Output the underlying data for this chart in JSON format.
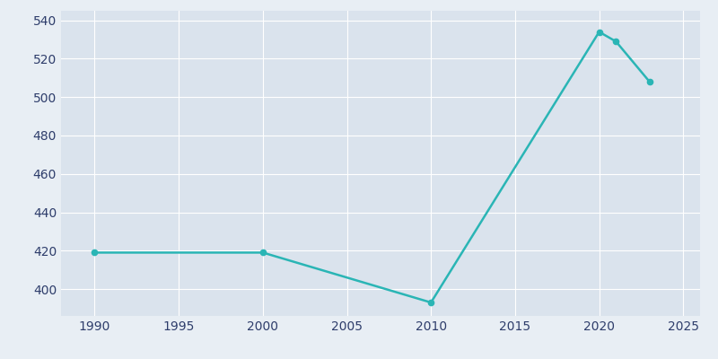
{
  "years": [
    1990,
    2000,
    2010,
    2020,
    2021,
    2023
  ],
  "population": [
    419,
    419,
    393,
    534,
    529,
    508
  ],
  "line_color": "#2AB5B5",
  "marker_color": "#2AB5B5",
  "background_color": "#E8EEF4",
  "plot_background_color": "#DAE3ED",
  "grid_color": "#FFFFFF",
  "tick_label_color": "#2E3D6B",
  "xlim": [
    1988,
    2026
  ],
  "ylim": [
    386,
    545
  ],
  "yticks": [
    400,
    420,
    440,
    460,
    480,
    500,
    520,
    540
  ],
  "xticks": [
    1990,
    1995,
    2000,
    2005,
    2010,
    2015,
    2020,
    2025
  ],
  "linewidth": 1.8,
  "markersize": 4.5
}
